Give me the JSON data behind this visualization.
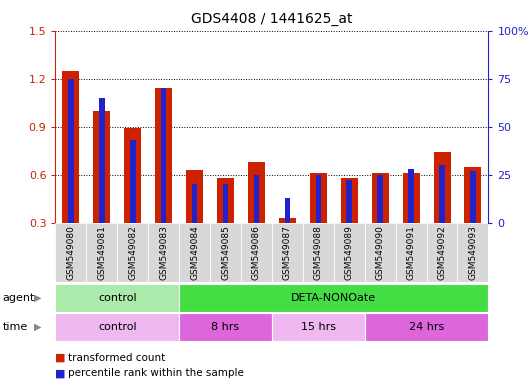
{
  "title": "GDS4408 / 1441625_at",
  "samples": [
    "GSM549080",
    "GSM549081",
    "GSM549082",
    "GSM549083",
    "GSM549084",
    "GSM549085",
    "GSM549086",
    "GSM549087",
    "GSM549088",
    "GSM549089",
    "GSM549090",
    "GSM549091",
    "GSM549092",
    "GSM549093"
  ],
  "red_values": [
    1.25,
    1.0,
    0.89,
    1.14,
    0.63,
    0.58,
    0.68,
    0.33,
    0.61,
    0.58,
    0.61,
    0.61,
    0.74,
    0.65
  ],
  "blue_values": [
    75,
    65,
    43,
    70,
    20,
    20,
    25,
    13,
    25,
    22,
    25,
    28,
    30,
    27
  ],
  "ylim_left": [
    0.3,
    1.5
  ],
  "ylim_right": [
    0,
    100
  ],
  "yticks_left": [
    0.3,
    0.6,
    0.9,
    1.2,
    1.5
  ],
  "yticks_right": [
    0,
    25,
    50,
    75,
    100
  ],
  "ytick_labels_right": [
    "0",
    "25",
    "50",
    "75",
    "100%"
  ],
  "red_color": "#cc2200",
  "blue_color": "#2222cc",
  "red_bar_width": 0.55,
  "blue_bar_width": 0.18,
  "agent_labels": [
    {
      "text": "control",
      "start": 0,
      "end": 4,
      "color": "#aaeaaa"
    },
    {
      "text": "DETA-NONOate",
      "start": 4,
      "end": 14,
      "color": "#44dd44"
    }
  ],
  "time_labels": [
    {
      "text": "control",
      "start": 0,
      "end": 4,
      "color": "#f0b8f0"
    },
    {
      "text": "8 hrs",
      "start": 4,
      "end": 7,
      "color": "#dd66dd"
    },
    {
      "text": "15 hrs",
      "start": 7,
      "end": 10,
      "color": "#f0b8f0"
    },
    {
      "text": "24 hrs",
      "start": 10,
      "end": 14,
      "color": "#dd66dd"
    }
  ],
  "legend_red": "transformed count",
  "legend_blue": "percentile rank within the sample",
  "bg_color": "#ffffff",
  "tick_color_left": "#cc2200",
  "tick_color_right": "#2222cc",
  "xtick_bg": "#d8d8d8"
}
